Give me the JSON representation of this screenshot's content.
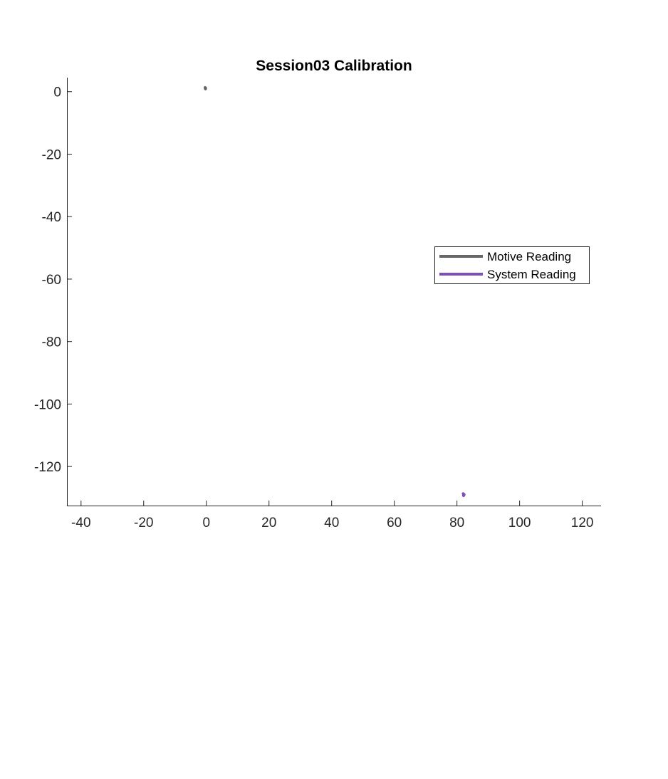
{
  "chart_data": {
    "type": "line",
    "title": "Session03 Calibration",
    "xlabel": "",
    "ylabel": "",
    "xlim": [
      -44.5,
      126
    ],
    "ylim": [
      -132.5,
      4.5
    ],
    "xticks": [
      -40,
      -20,
      0,
      20,
      40,
      60,
      80,
      100,
      120
    ],
    "yticks": [
      0,
      -20,
      -40,
      -60,
      -80,
      -100,
      -120
    ],
    "grid": false,
    "legend_location": "right",
    "series": [
      {
        "name": "Motive Reading",
        "color": "#666666",
        "x": [
          -0.4,
          -0.2,
          -0.3
        ],
        "y": [
          1.3,
          1.1,
          0.9
        ]
      },
      {
        "name": "System Reading",
        "color": "#7e4fb8",
        "x": [
          82.0,
          82.3,
          82.1
        ],
        "y": [
          -128.7,
          -129.0,
          -129.3
        ]
      }
    ]
  }
}
